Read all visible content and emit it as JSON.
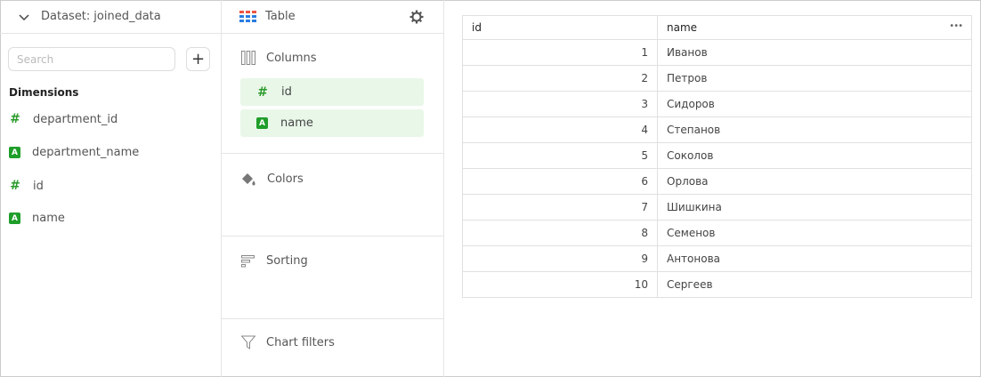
{
  "dataset": {
    "label": "Dataset:",
    "name": "joined_data"
  },
  "search": {
    "placeholder": "Search",
    "value": ""
  },
  "dimensions": {
    "title": "Dimensions",
    "items": [
      {
        "label": "department_id",
        "type": "number"
      },
      {
        "label": "department_name",
        "type": "string"
      },
      {
        "label": "id",
        "type": "number"
      },
      {
        "label": "name",
        "type": "string"
      }
    ]
  },
  "visualization": {
    "label": "Table"
  },
  "sections": {
    "columns": "Columns",
    "colors": "Colors",
    "sorting": "Sorting",
    "filters": "Chart filters"
  },
  "columns": [
    {
      "label": "id",
      "type": "number"
    },
    {
      "label": "name",
      "type": "string"
    }
  ],
  "table": {
    "headers": [
      "id",
      "name"
    ],
    "rows": [
      [
        "1",
        "Иванов"
      ],
      [
        "2",
        "Петров"
      ],
      [
        "3",
        "Сидоров"
      ],
      [
        "4",
        "Степанов"
      ],
      [
        "5",
        "Соколов"
      ],
      [
        "6",
        "Орлова"
      ],
      [
        "7",
        "Шишкина"
      ],
      [
        "8",
        "Семенов"
      ],
      [
        "9",
        "Антонова"
      ],
      [
        "10",
        "Сергеев"
      ]
    ]
  },
  "icons": {
    "hash": "#",
    "string": "A",
    "more": "•••",
    "plus": "+"
  }
}
